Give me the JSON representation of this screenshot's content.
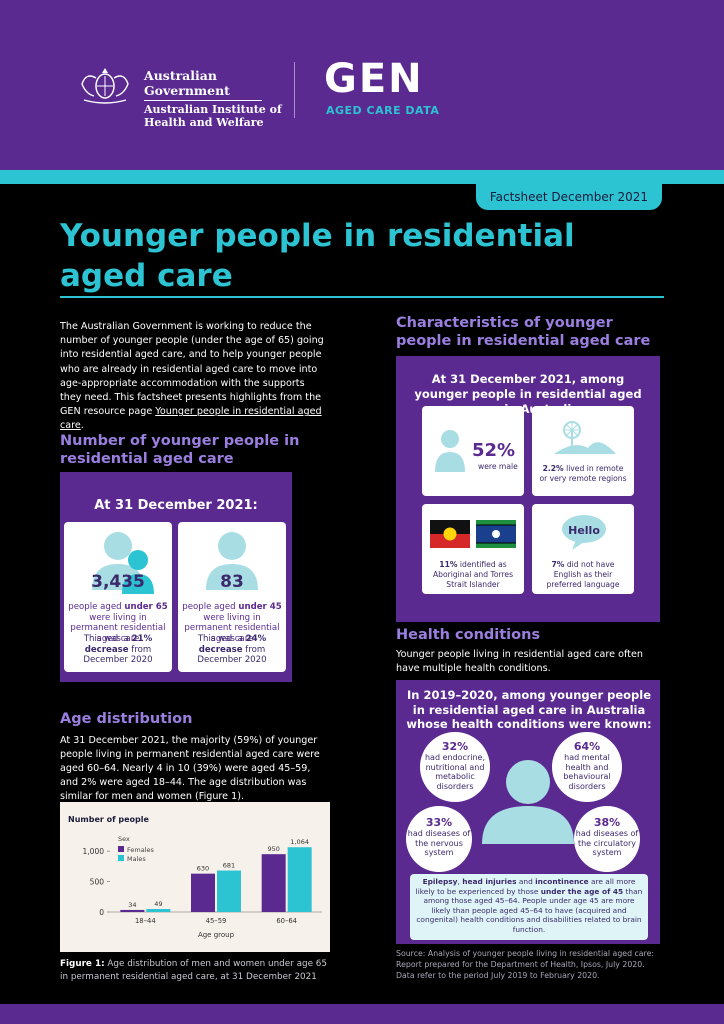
{
  "header": {
    "gov_line1": "Australian Government",
    "gov_line2": "Australian Institute of",
    "gov_line3": "Health and Welfare",
    "gen": "GEN",
    "gen_sub": "AGED CARE DATA"
  },
  "badge": "Factsheet December 2021",
  "title": "Younger people in residential aged care",
  "intro": {
    "text": "The Australian Government is working to reduce the number of younger people (under the age of 65) going into residential aged care, and to help younger people who are already in residential aged care to move into age-appropriate accommodation with the supports they need. This factsheet presents highlights from the GEN resource page ",
    "link": "Younger people in residential aged care",
    "end": "."
  },
  "number_section": {
    "heading": "Number of younger people in residential aged care",
    "box_title": "At 31 December 2021:",
    "card1": {
      "value": "3,435",
      "pre": "people aged ",
      "bold": "under 65",
      "rest": " were living in permanent residential aged care",
      "change_pre": "This was a ",
      "change_bold": "21% decrease",
      "change_post": " from December 2020"
    },
    "card2": {
      "value": "83",
      "pre": "people aged ",
      "bold": "under 45",
      "rest": " were living in permanent residential aged care",
      "change_pre": "This was a ",
      "change_bold": "24% decrease",
      "change_post": " from December 2020"
    }
  },
  "age_section": {
    "heading": "Age distribution",
    "text": "At 31 December 2021, the majority (59%) of younger people living in permanent residential aged care were aged 60–64. Nearly 4 in 10 (39%) were aged 45–59, and 2% were aged 18–44. The age distribution was similar for men and women (Figure 1).",
    "figure_label": "Figure 1:",
    "figure_caption": " Age distribution of men and women under age 65 in permanent residential aged care, at 31 December 2021"
  },
  "chart_data": {
    "type": "bar",
    "title": "",
    "ylabel": "Number of people",
    "xlabel": "Age group",
    "legend_title": "Sex",
    "categories": [
      "18–44",
      "45–59",
      "60–64"
    ],
    "series": [
      {
        "name": "Females",
        "color": "#5b2a91",
        "values": [
          34,
          630,
          950
        ],
        "labels": [
          "34",
          "630",
          "950"
        ]
      },
      {
        "name": "Males",
        "color": "#2cc3d3",
        "values": [
          49,
          681,
          1064
        ],
        "labels": [
          "49",
          "681",
          "1,064"
        ]
      }
    ],
    "yticks": [
      0,
      500,
      1000
    ],
    "ytick_labels": [
      "0",
      "500",
      "1,000"
    ],
    "ylim": [
      0,
      1150
    ],
    "grid": false,
    "legend_position": "top-left"
  },
  "characteristics": {
    "heading": "Characteristics of younger people in residential aged care",
    "box_title": "At 31 December 2021, among younger people in residential aged care in Australia:",
    "male_value": "52%",
    "male_text": "were male",
    "remote_value": "2.2%",
    "remote_text": " lived in remote or very remote regions",
    "indigenous_value": "11%",
    "indigenous_text": " identified as Aboriginal and Torres Strait Islander",
    "language_bubble": "Hello",
    "language_value": "7%",
    "language_text": " did not have English as their preferred language"
  },
  "health": {
    "heading": "Health conditions",
    "intro": "Younger people living in residential aged care often have multiple health conditions.",
    "box_title": "In 2019–2020, among younger people in residential aged care in Australia whose health conditions were known:",
    "c1_pct": "32%",
    "c1_text": "had endocrine, nutritional and metabolic disorders",
    "c2_pct": "64%",
    "c2_text": "had mental health and behavioural disorders",
    "c3_pct": "33%",
    "c3_text": "had diseases of the nervous system",
    "c4_pct": "38%",
    "c4_text": "had diseases of the circulatory system",
    "note_b1": "Epilepsy",
    "note_t1": ", ",
    "note_b2": "head injuries",
    "note_t2": " and ",
    "note_b3": "incontinence",
    "note_t3": " are all more likely to be experienced by those ",
    "note_b4": "under the age of 45",
    "note_t4": " than among those aged 45–64. People under age 45 are more likely than people aged 45–64 to have (acquired and congenital) health conditions and disabilities related to brain function."
  },
  "source": "Source: Analysis of younger people living in residential aged care: Report prepared for the Department of Health, Ipsos, July 2020. Data refer to the period July 2019 to February 2020.",
  "colors": {
    "purple": "#5b2a91",
    "teal": "#2cc3d3",
    "lilac": "#9b7fe0",
    "light_teal": "#a8dde4"
  }
}
